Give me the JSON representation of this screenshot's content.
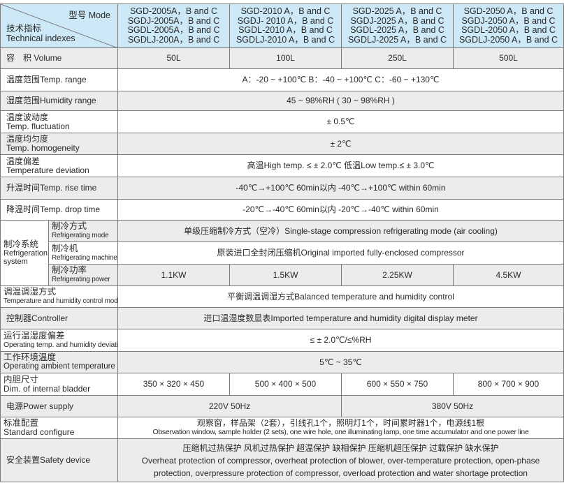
{
  "header": {
    "mode_label": "型号 Mode",
    "index_label_zh": "技术指标",
    "index_label_en": "Technical indexes",
    "models": [
      [
        "SGD-2005A，B and C",
        "SGDJ-2005A，B and C",
        "SGDL-2005A，B and C",
        "SGDLJ-200A，B and C"
      ],
      [
        "SGD-2010 A，B and C",
        "SGDJ- 2010 A，B and C",
        "SGDL-2010 A，B and C",
        "SGDLJ-2010 A，B and C"
      ],
      [
        "SGD-2025 A，B and C",
        "SGDJ-2025 A，B and C",
        "SGDL-2025 A，B and C",
        "SGDLJ-2025 A，B and C"
      ],
      [
        "SGD-2050 A，B and C",
        "SGDJ-2050 A，B and C",
        "SGDL-2050 A，B and C",
        "SGDLJ-2050 A，B and C"
      ]
    ]
  },
  "rows": {
    "volume": {
      "label": "容　积  Volume",
      "values": [
        "50L",
        "100L",
        "250L",
        "500L"
      ]
    },
    "temp_range": {
      "label": "温度范围Temp. range",
      "value": "A：-20 ~ +100℃  B：-40 ~ +100℃  C：-60 ~ +130℃"
    },
    "humidity_range": {
      "label": "湿度范围Humidity range",
      "value": "45 ~ 98%RH ( 30 ~ 98%RH )"
    },
    "temp_fluctuation": {
      "label_zh": "温度波动度",
      "label_en": "Temp. fluctuation",
      "value": "± 0.5℃"
    },
    "temp_homogeneity": {
      "label_zh": "温度均匀度",
      "label_en": "Temp. homogeneity",
      "value": "± 2℃"
    },
    "temp_deviation": {
      "label_zh": "温度偏差",
      "label_en": "Temperature deviation",
      "value": "高温High temp. ≤ ± 2.0℃  低温Low temp.≤ ± 3.0℃"
    },
    "rise_time": {
      "label": "升温时间Temp. rise time",
      "value": "-40℃→+100℃ 60min以内    -40℃→+100℃ within 60min"
    },
    "drop_time": {
      "label": "降温时间Temp. drop time",
      "value": "-20℃→-40℃  60min以内    -20℃→-40℃  within 60min"
    },
    "refrigeration": {
      "label_zh": "制冷系统",
      "label_en": "Refrigeration system",
      "mode": {
        "label_zh": "制冷方式",
        "label_en": "Refrigerating mode",
        "value": "单级压缩制冷方式（空冷）Single-stage compression refrigerating mode (air cooling)"
      },
      "machine": {
        "label_zh": "制冷机",
        "label_en": "Refrigerating machine",
        "value": "原装进口全封闭压缩机Original imported fully-enclosed compressor"
      },
      "power": {
        "label_zh": "制冷功率",
        "label_en": "Refrigerating power",
        "values": [
          "1.1KW",
          "1.5KW",
          "2.25KW",
          "4.5KW"
        ]
      }
    },
    "control_mode": {
      "label_zh": "调温调湿方式",
      "label_en": "Temperature and humidity control mode",
      "value": "平衡调温调湿方式Balanced temperature and humidity control"
    },
    "controller": {
      "label": "控制器Controller",
      "value": "进口温湿度数显表Imported temperature and humidity digital display meter"
    },
    "operating_deviation": {
      "label_zh": "运行温湿度偏差",
      "label_en": "Operating temp. and humidity deviation",
      "value": "≤ ± 2.0℃/≤%RH"
    },
    "ambient_temp": {
      "label_zh": "工作环境温度",
      "label_en": "Operating ambient temperature",
      "value": "5℃ ~ 35℃"
    },
    "bladder": {
      "label_zh": "内胆尺寸",
      "label_en": "Dim. of internal bladder",
      "values": [
        "350 × 320 × 450",
        "500 × 400 × 500",
        "600 × 550 × 750",
        "800 × 700 × 900"
      ]
    },
    "power_supply": {
      "label": "电源Power supply",
      "values": [
        "220V 50Hz",
        "380V 50Hz"
      ]
    },
    "standard_config": {
      "label_zh": "标准配置",
      "label_en": "Standard configure",
      "value_zh": "观察窗，样品架（2套），引线孔1个，照明灯1个，时间累时器1个，电源线1根",
      "value_en": "Observation window, sample holder (2 sets), one wire hole, one illuminating lamp, one time accumulator and one power line"
    },
    "safety": {
      "label": "安全装置Safety device",
      "value_zh": "压缩机过热保护 风机过热保护 超温保护 缺相保护 压缩机超压保护 过载保护 缺水保护",
      "value_en_1": "Overheat protection of compressor, overheat protection of blower, over-temperature protection, open-phase",
      "value_en_2": "protection, overpressure protection of compressor, overload protection and water shortage protection"
    }
  },
  "colors": {
    "header_bg": "#cde8f6",
    "stripe_bg": "#ececec",
    "border": "#7a7a7a"
  }
}
